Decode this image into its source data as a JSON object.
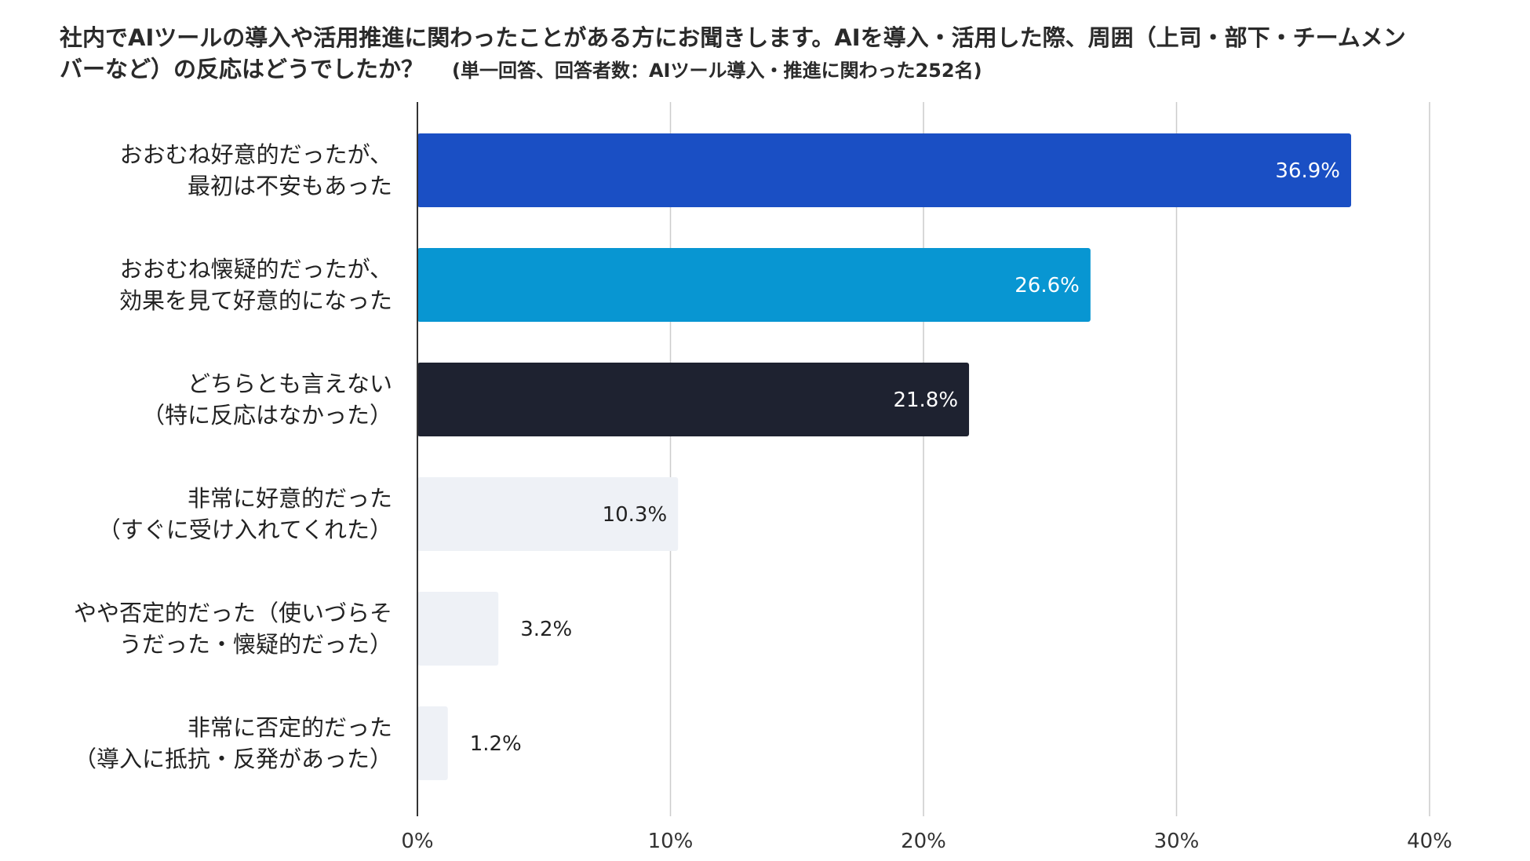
{
  "title": "社内でAIツールの導入や活用推進に関わったことがある方にお聞きします。AIを導入・活用した際、周囲（上司・部下・チームメンバーなど）の反応はどうでしたか？",
  "note": "(単一回答、回答者数：AIツール導入・推進に関わった252名)",
  "chart_data": {
    "type": "bar",
    "orientation": "horizontal",
    "title": "社内でAIツールの導入や活用推進に関わったことがある方にお聞きします。AIを導入・活用した際、周囲（上司・部下・チームメンバーなど）の反応はどうでしたか？",
    "subtitle": "(単一回答、回答者数：AIツール導入・推進に関わった252名)",
    "categories": [
      [
        "おおむね好意的だったが、",
        "最初は不安もあった"
      ],
      [
        "おおむね懐疑的だったが、",
        "効果を見て好意的になった"
      ],
      [
        "どちらとも言えない",
        "（特に反応はなかった）"
      ],
      [
        "非常に好意的だった",
        "（すぐに受け入れてくれた）"
      ],
      [
        "やや否定的だった（使いづらそ",
        "うだった・懐疑的だった）"
      ],
      [
        "非常に否定的だった",
        "（導入に抵抗・反発があった）"
      ]
    ],
    "values": [
      36.9,
      26.6,
      21.8,
      10.3,
      3.2,
      1.2
    ],
    "value_labels": [
      "36.9%",
      "26.6%",
      "21.8%",
      "10.3%",
      "3.2%",
      "1.2%"
    ],
    "bar_colors": [
      "#1a4fc4",
      "#0896d2",
      "#1e2230",
      "#eef1f6",
      "#eef1f6",
      "#eef1f6"
    ],
    "label_colors": [
      "#ffffff",
      "#ffffff",
      "#ffffff",
      "#222222",
      "#222222",
      "#222222"
    ],
    "label_inside": [
      true,
      true,
      true,
      true,
      false,
      false
    ],
    "xlim": [
      0,
      40
    ],
    "ticks": [
      0,
      10,
      20,
      30,
      40
    ],
    "tick_labels": [
      "0%",
      "10%",
      "20%",
      "30%",
      "40%"
    ],
    "grid": true,
    "xlabel": "",
    "ylabel": ""
  }
}
